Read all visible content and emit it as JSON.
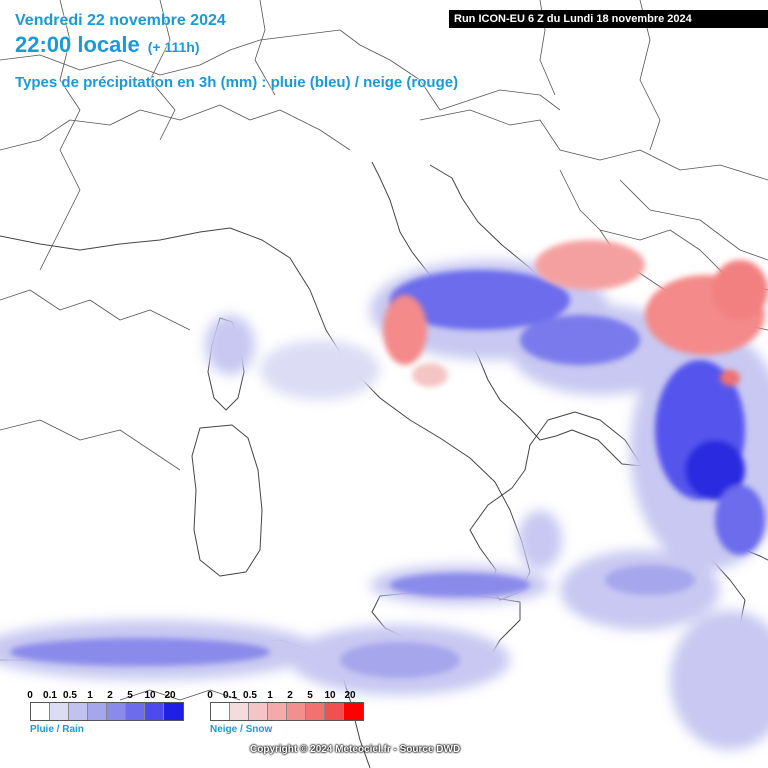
{
  "header": {
    "date": "Vendredi 22 novembre 2024",
    "time": "22:00 locale",
    "lead": "(+ 111h)",
    "precip_type": "Types de précipitation en 3h (mm) : pluie (bleu) / neige (rouge)",
    "run": "Run ICON-EU 6 Z du Lundi 18 novembre 2024"
  },
  "legend": {
    "rain": {
      "ticks": [
        "0",
        "0.1",
        "0.5",
        "1",
        "2",
        "5",
        "10",
        "20"
      ],
      "colors": [
        "#ffffff",
        "#dcdcf5",
        "#c2c2f0",
        "#a6a6ec",
        "#8a8aeb",
        "#6c6ced",
        "#4b4bee",
        "#1f1fe6"
      ],
      "label": "Pluie / Rain"
    },
    "snow": {
      "ticks": [
        "0",
        "0.1",
        "0.5",
        "1",
        "2",
        "5",
        "10",
        "20"
      ],
      "colors": [
        "#ffffff",
        "#f5dcdc",
        "#f5c4c4",
        "#f4aaaa",
        "#f29090",
        "#f27272",
        "#f05050",
        "#ff0000"
      ],
      "label": "Neige / Snow"
    }
  },
  "copyright": "Copyright © 2024 Meteociel.fr - Source DWD",
  "colors": {
    "rain_strong": "#2a2ae0",
    "rain_light": "#c8c8f2",
    "snow": "#f07a7a",
    "border": "#555555"
  }
}
